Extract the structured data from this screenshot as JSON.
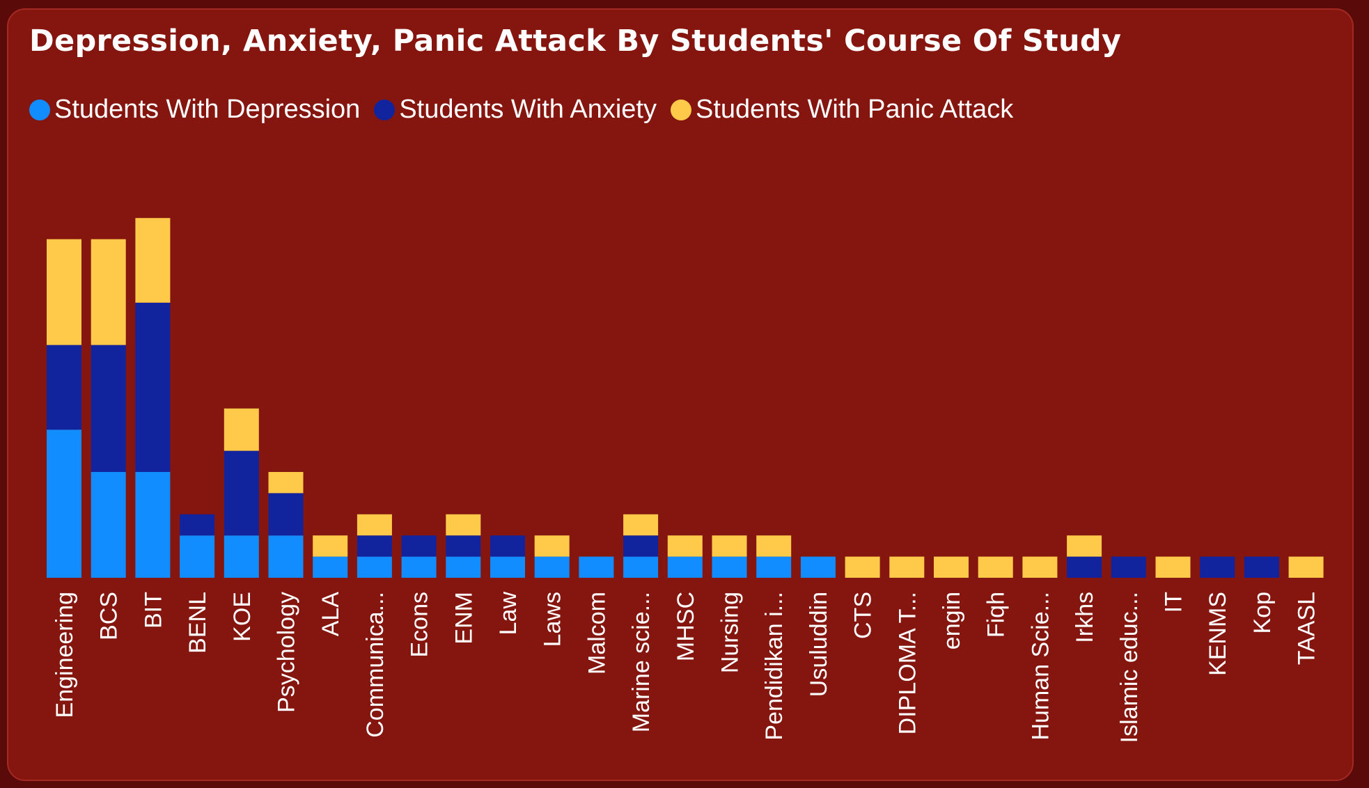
{
  "chart_data": {
    "type": "bar",
    "stacked": true,
    "title": "Depression, Anxiety, Panic Attack By Students' Course Of Study",
    "legend_position": "top-left",
    "grid": false,
    "ylim": [
      0,
      17
    ],
    "categories": [
      "Engineering",
      "BCS",
      "BIT",
      "BENL",
      "KOE",
      "Psychology",
      "ALA",
      "Communica...",
      "Econs",
      "ENM",
      "Law",
      "Laws",
      "Malcom",
      "Marine scie...",
      "MHSC",
      "Nursing",
      "Pendidikan i...",
      "Usuluddin",
      "CTS",
      "DIPLOMA T...",
      "engin",
      "Fiqh",
      "Human Scie...",
      "Irkhs",
      "Islamic educ...",
      "IT",
      "KENMS",
      "Kop",
      "TAASL"
    ],
    "series": [
      {
        "name": "Students With Depression",
        "color": "#118dff",
        "values": [
          7,
          5,
          5,
          2,
          2,
          2,
          1,
          1,
          1,
          1,
          1,
          1,
          1,
          1,
          1,
          1,
          1,
          1,
          0,
          0,
          0,
          0,
          0,
          0,
          0,
          0,
          0,
          0,
          0
        ]
      },
      {
        "name": "Students With Anxiety",
        "color": "#12239e",
        "values": [
          4,
          6,
          8,
          1,
          4,
          2,
          0,
          1,
          1,
          1,
          1,
          0,
          0,
          1,
          0,
          0,
          0,
          0,
          0,
          0,
          0,
          0,
          0,
          1,
          1,
          0,
          1,
          1,
          0
        ]
      },
      {
        "name": "Students With Panic Attack",
        "color": "#ffc94a",
        "values": [
          5,
          5,
          4,
          0,
          2,
          1,
          1,
          1,
          0,
          1,
          0,
          1,
          0,
          1,
          1,
          1,
          1,
          0,
          1,
          1,
          1,
          1,
          1,
          1,
          0,
          1,
          0,
          0,
          1
        ]
      }
    ]
  }
}
